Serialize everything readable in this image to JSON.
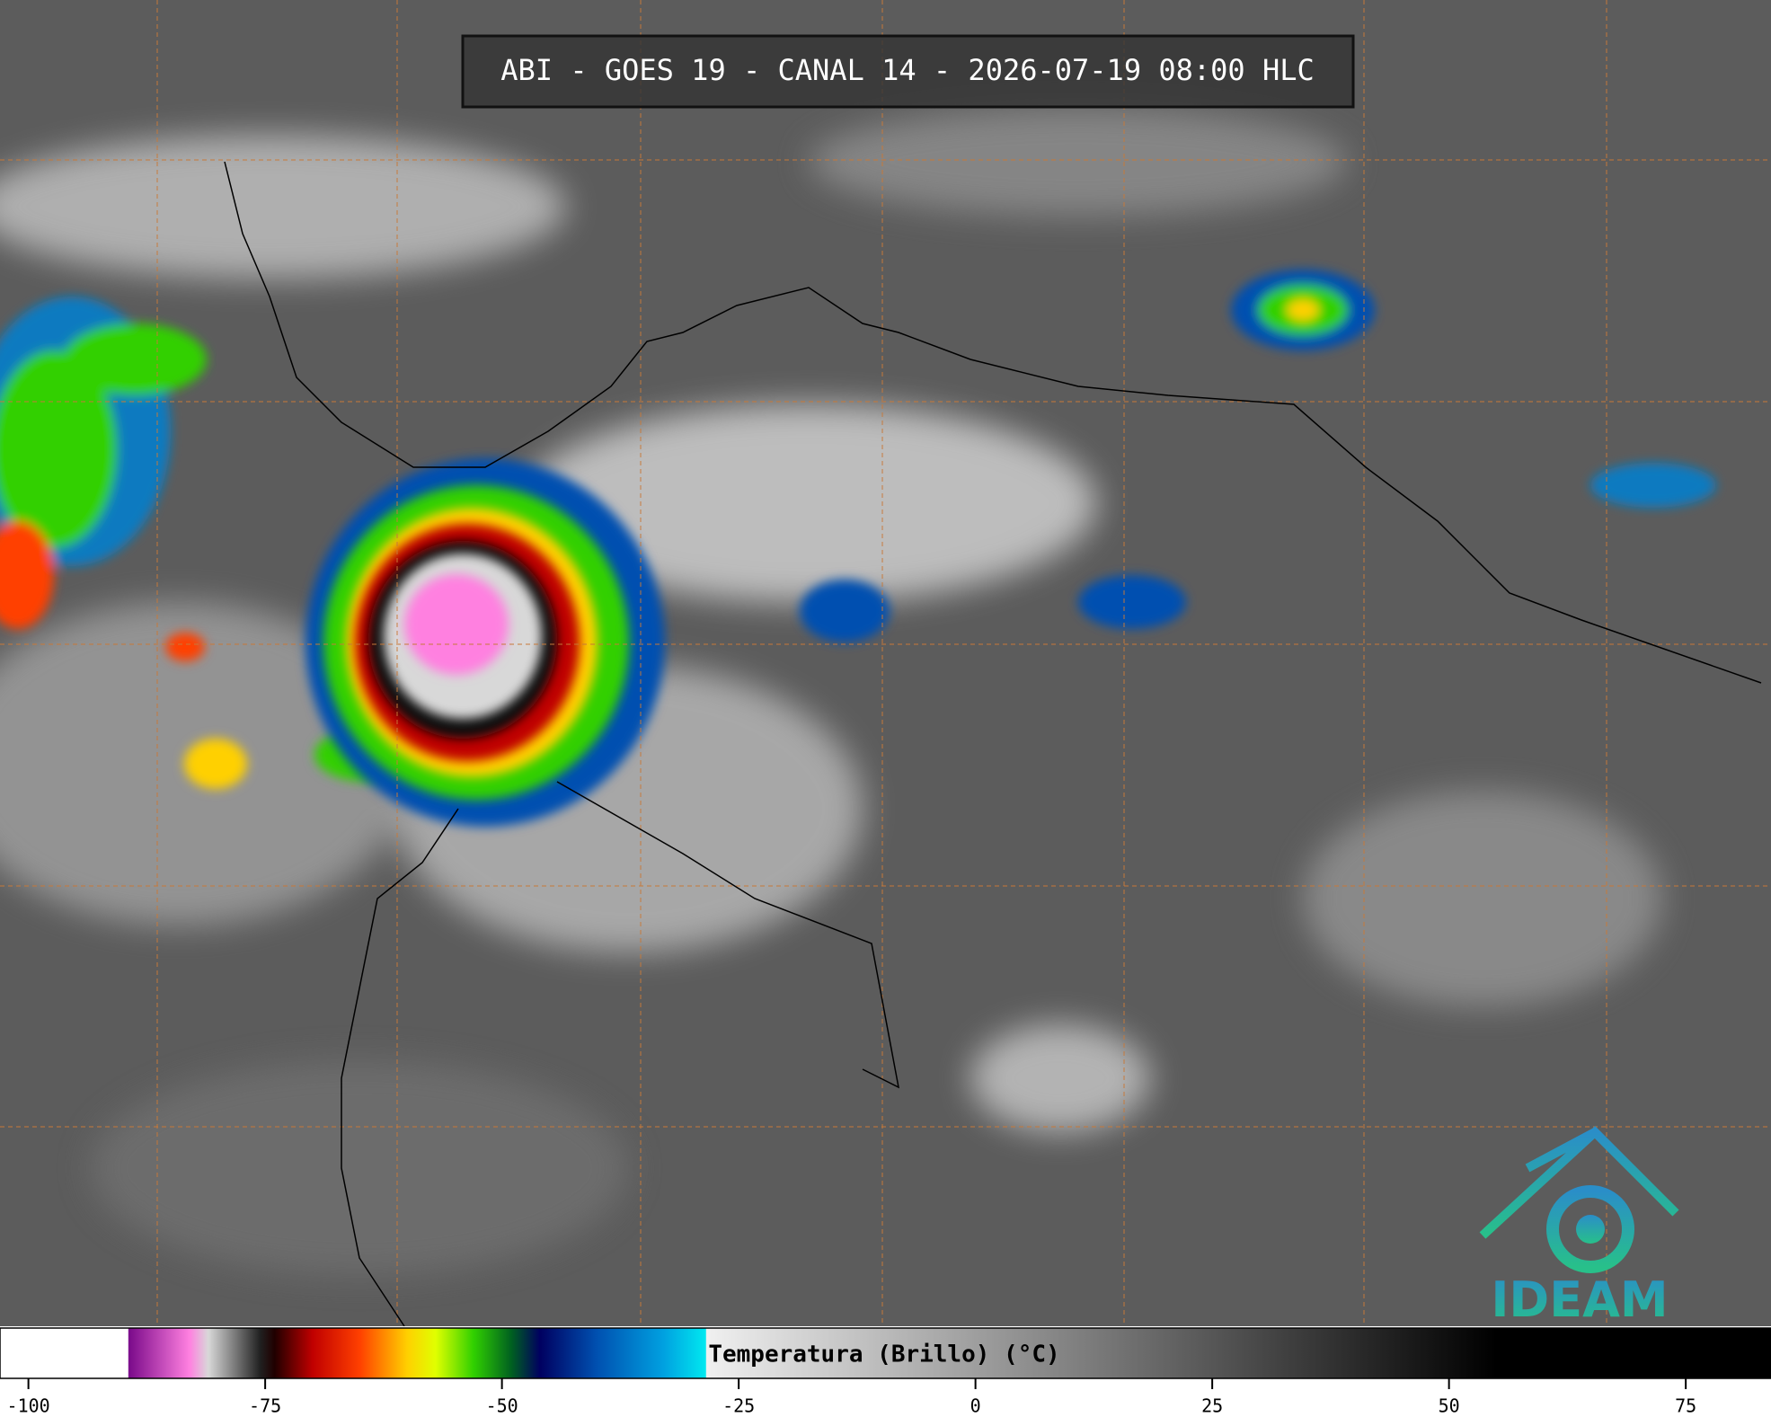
{
  "header": {
    "title": "ABI - GOES 19 - CANAL 14 - 2026-07-19 08:00 HLC"
  },
  "colorbar": {
    "label": "Temperatura (Brillo) (°C)",
    "lim": [
      -103,
      84
    ],
    "ticks": [
      -100,
      -75,
      -50,
      -25,
      0,
      25,
      50,
      75
    ],
    "stops": [
      {
        "value": -103,
        "color": "#ffffff"
      },
      {
        "value": -89.5,
        "color": "#ffffff"
      },
      {
        "value": -89.4,
        "color": "#7a0a8a"
      },
      {
        "value": -83,
        "color": "#ff80e0"
      },
      {
        "value": -81,
        "color": "#d8d8d8"
      },
      {
        "value": -75.5,
        "color": "#202020"
      },
      {
        "value": -74,
        "color": "#200000"
      },
      {
        "value": -70,
        "color": "#c00000"
      },
      {
        "value": -65,
        "color": "#ff4000"
      },
      {
        "value": -60,
        "color": "#ffd000"
      },
      {
        "value": -57,
        "color": "#e0ff00"
      },
      {
        "value": -53,
        "color": "#30d000"
      },
      {
        "value": -49,
        "color": "#006020"
      },
      {
        "value": -46,
        "color": "#000060"
      },
      {
        "value": -40,
        "color": "#0050b0"
      },
      {
        "value": -33,
        "color": "#00a0e0"
      },
      {
        "value": -28.5,
        "color": "#00e8f0"
      },
      {
        "value": -28.4,
        "color": "#f0f0f0"
      },
      {
        "value": 55,
        "color": "#000000"
      },
      {
        "value": 84,
        "color": "#000000"
      }
    ]
  },
  "logo": {
    "text": "IDEAM"
  }
}
